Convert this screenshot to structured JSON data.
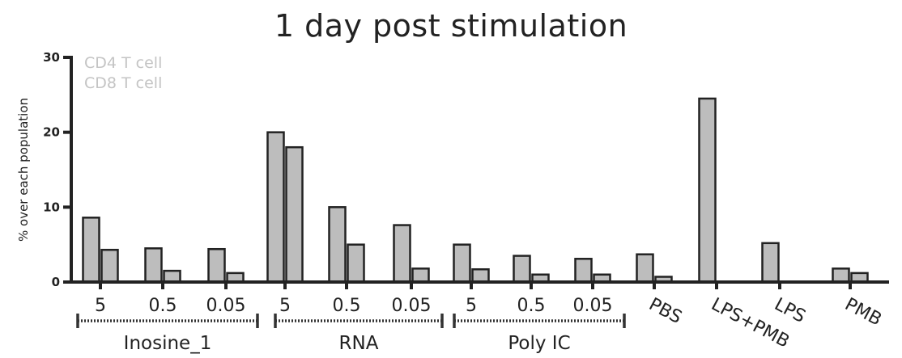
{
  "chart_data": {
    "type": "bar",
    "title": "1 day post stimulation",
    "ylabel": "% over each population",
    "ylim": [
      0,
      30
    ],
    "yticks": [
      0,
      10,
      20,
      30
    ],
    "categories": [
      "5",
      "0.5",
      "0.05",
      "5",
      "0.5",
      "0.05",
      "5",
      "0.5",
      "0.05",
      "PBS",
      "LPS+PMB",
      "LPS",
      "PMB"
    ],
    "groups": [
      {
        "label": "Inosine_1",
        "categories": [
          0,
          2
        ]
      },
      {
        "label": "RNA",
        "categories": [
          3,
          5
        ]
      },
      {
        "label": "Poly IC",
        "categories": [
          6,
          8
        ]
      }
    ],
    "series": [
      {
        "name": "CD4 T cell",
        "values": [
          8.6,
          4.5,
          4.4,
          20.0,
          10.0,
          7.6,
          5.0,
          3.5,
          3.1,
          3.7,
          24.5,
          5.2,
          1.8
        ]
      },
      {
        "name": "CD8 T cell",
        "values": [
          4.3,
          1.5,
          1.2,
          18.0,
          5.0,
          1.8,
          1.7,
          1.0,
          1.0,
          0.7,
          null,
          null,
          1.2
        ]
      }
    ],
    "legend": "top-left",
    "grid": false
  }
}
